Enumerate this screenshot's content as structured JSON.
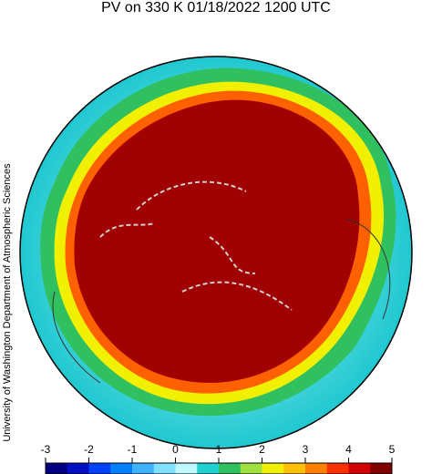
{
  "title": "PV on 330 K 01/18/2022 1200 UTC",
  "credit": "University of Washington Department of Atmospheric Sciences",
  "colorbar": {
    "lim": [
      -3,
      5
    ],
    "ticks": [
      -3,
      -2,
      -1,
      0,
      1,
      2,
      3,
      4,
      5
    ],
    "colors": [
      "#000080",
      "#0010c0",
      "#0040ff",
      "#0080ff",
      "#40b0ff",
      "#80e0ff",
      "#c0f8ff",
      "#20d0d0",
      "#30c060",
      "#a0e040",
      "#f0f000",
      "#ffc000",
      "#ff8000",
      "#ff3000",
      "#d00000",
      "#800000"
    ]
  }
}
